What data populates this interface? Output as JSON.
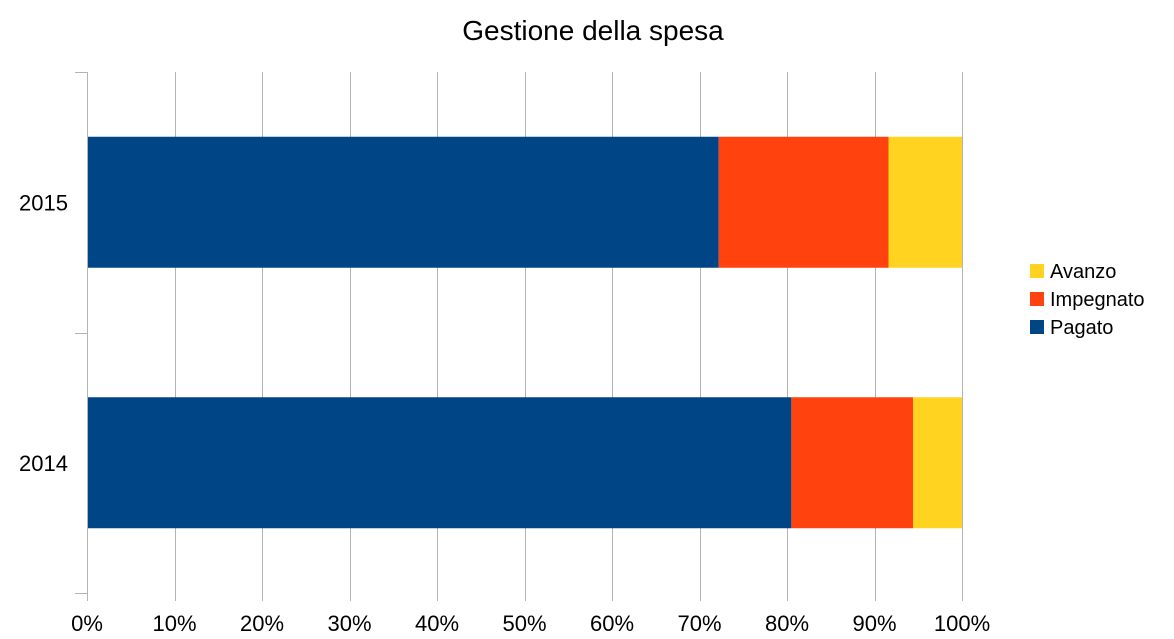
{
  "chart_data": {
    "type": "bar",
    "orientation": "horizontal",
    "stacked": "percent",
    "title": "Gestione della spesa",
    "categories": [
      "2014",
      "2015"
    ],
    "series": [
      {
        "name": "Pagato",
        "color": "#004586",
        "values": [
          80.5,
          72.2
        ]
      },
      {
        "name": "Impegnato",
        "color": "#ff420e",
        "values": [
          13.9,
          19.4
        ]
      },
      {
        "name": "Avanzo",
        "color": "#ffd320",
        "values": [
          5.6,
          8.4
        ]
      }
    ],
    "xlim": [
      0,
      100
    ],
    "x_ticks": [
      "0%",
      "10%",
      "20%",
      "30%",
      "40%",
      "50%",
      "60%",
      "70%",
      "80%",
      "90%",
      "100%"
    ],
    "legend_order": [
      "Avanzo",
      "Impegnato",
      "Pagato"
    ],
    "legend_position": "right",
    "grid": true
  }
}
